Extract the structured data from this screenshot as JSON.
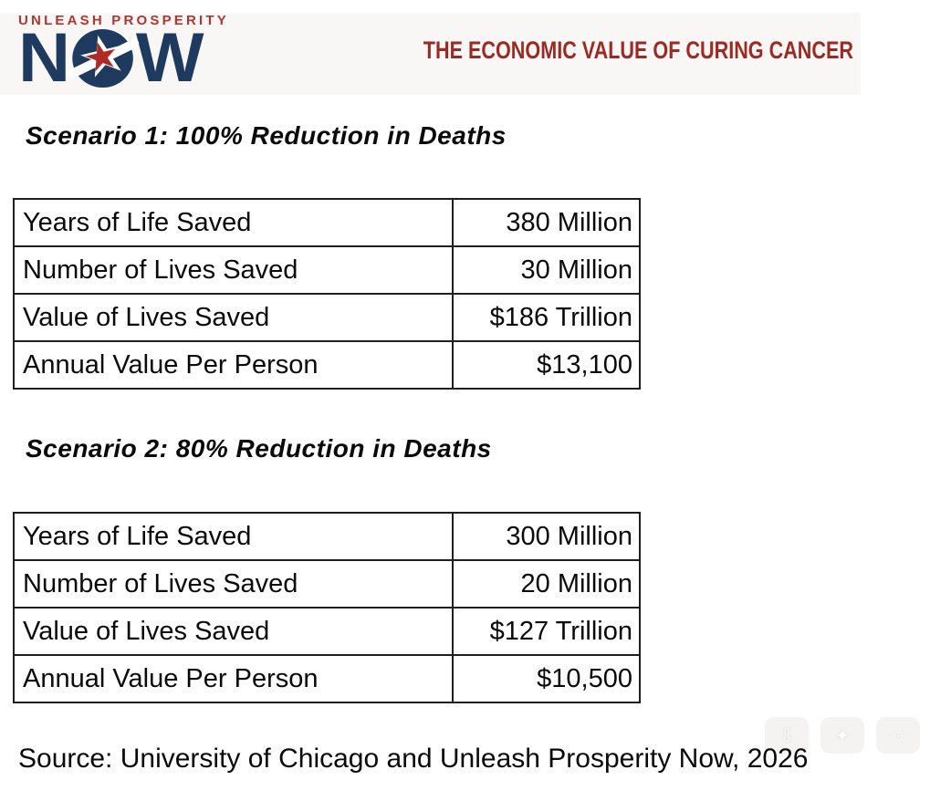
{
  "header": {
    "logo": {
      "line1": "UNLEASH PROSPERITY",
      "now_left": "N",
      "now_right": "W",
      "star_white": "★",
      "star_red": "★"
    },
    "title": "THE ECONOMIC VALUE OF CURING CANCER"
  },
  "scenario1": {
    "heading": "Scenario 1: 100% Reduction in Deaths",
    "rows": [
      {
        "label": "Years of Life Saved",
        "value": "380 Million"
      },
      {
        "label": "Number of Lives Saved",
        "value": "30 Million"
      },
      {
        "label": "Value of Lives Saved",
        "value": "$186 Trillion"
      },
      {
        "label": "Annual Value Per Person",
        "value": "$13,100"
      }
    ]
  },
  "scenario2": {
    "heading": "Scenario 2: 80% Reduction in Deaths",
    "rows": [
      {
        "label": "Years of Life Saved",
        "value": "300 Million"
      },
      {
        "label": "Number of Lives Saved",
        "value": "20 Million"
      },
      {
        "label": "Value of Lives Saved",
        "value": "$127 Trillion"
      },
      {
        "label": "Annual Value Per Person",
        "value": "$10,500"
      }
    ]
  },
  "source": "Source: University of Chicago and Unleash Prosperity Now, 2026",
  "overlay_buttons": {
    "glyphs": [
      "⇩",
      "✦",
      "⋯"
    ]
  },
  "colors": {
    "brand_red": "#b23530",
    "brand_navy": "#1e3a5f",
    "title_red": "#9c2a23",
    "star_red": "#b02a25",
    "table_border": "#1f1f1f",
    "header_band": "#f8f7f6"
  }
}
